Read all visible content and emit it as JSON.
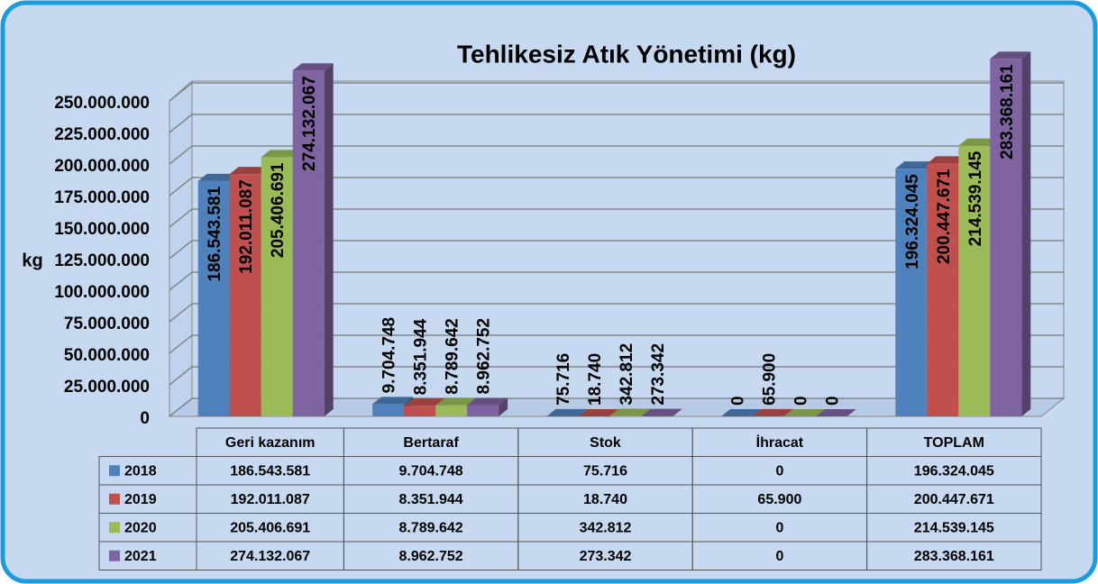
{
  "chart_data": {
    "type": "bar3d",
    "title": "Tehlikesiz Atık Yönetimi (kg)",
    "y_label": "kg",
    "categories": [
      "Geri kazanım",
      "Bertaraf",
      "Stok",
      "İhracat",
      "TOPLAM"
    ],
    "series": [
      {
        "name": "2018",
        "color": "#4f81bd",
        "values": [
          186543581,
          9704748,
          75716,
          0,
          196324045
        ],
        "value_labels": [
          "186.543.581",
          "9.704.748",
          "75.716",
          "0",
          "196.324.045"
        ]
      },
      {
        "name": "2019",
        "color": "#c0504d",
        "values": [
          192011087,
          8351944,
          18740,
          65900,
          200447671
        ],
        "value_labels": [
          "192.011.087",
          "8.351.944",
          "18.740",
          "65.900",
          "200.447.671"
        ]
      },
      {
        "name": "2020",
        "color": "#9bbb59",
        "values": [
          205406691,
          8789642,
          342812,
          0,
          214539145
        ],
        "value_labels": [
          "205.406.691",
          "8.789.642",
          "342.812",
          "0",
          "214.539.145"
        ]
      },
      {
        "name": "2021",
        "color": "#8064a2",
        "values": [
          274132067,
          8962752,
          273342,
          0,
          283368161
        ],
        "value_labels": [
          "274.132.067",
          "8.962.752",
          "273.342",
          "0",
          "283.368.161"
        ]
      }
    ],
    "ylim": [
      0,
      250000000
    ],
    "yticks": [
      0,
      {
        "value": 25000000,
        "label": "25.000.000"
      },
      {
        "value": 50000000,
        "label": "50.000.000"
      },
      {
        "value": 75000000,
        "label": "75.000.000"
      },
      {
        "value": 100000000,
        "label": "100.000.000"
      },
      {
        "value": 125000000,
        "label": "125.000.000"
      },
      {
        "value": 150000000,
        "label": "150.000.000"
      },
      {
        "value": 175000000,
        "label": "175.000.000"
      },
      {
        "value": 200000000,
        "label": "200.000.000"
      },
      {
        "value": 225000000,
        "label": "225.000.000"
      },
      {
        "value": 250000000,
        "label": "250.000.000"
      }
    ],
    "grid": true
  }
}
